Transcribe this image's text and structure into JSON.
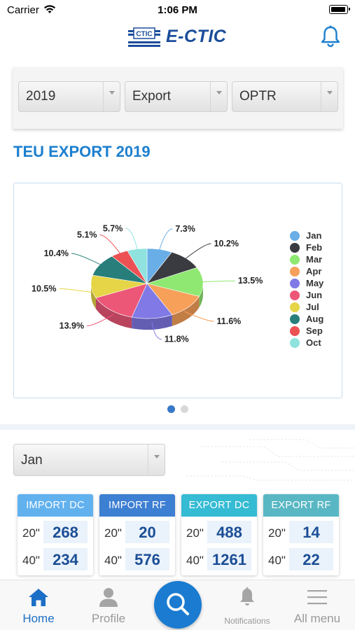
{
  "status_bar": {
    "carrier": "Carrier",
    "time": "1:06 PM"
  },
  "header": {
    "logo_mark_text": "CTIC",
    "logo_text": "E-CTIC"
  },
  "filters": {
    "year": "2019",
    "direction": "Export",
    "operator": "OPTR"
  },
  "section_title": "TEU EXPORT 2019",
  "chart_data": {
    "type": "pie",
    "style": "3d-pie",
    "categories": [
      "Jan",
      "Feb",
      "Mar",
      "Apr",
      "May",
      "Jun",
      "Jul",
      "Aug",
      "Sep",
      "Oct"
    ],
    "values": [
      7.3,
      10.2,
      13.5,
      11.6,
      11.8,
      13.9,
      10.5,
      10.4,
      5.1,
      5.7
    ],
    "labels": [
      "7.3%",
      "10.2%",
      "13.5%",
      "11.6%",
      "11.8%",
      "13.9%",
      "10.5%",
      "10.4%",
      "5.1%",
      "5.7%"
    ],
    "colors": [
      "#6aaee8",
      "#3a3b40",
      "#8fe872",
      "#f7a05a",
      "#8079e6",
      "#ec5778",
      "#e5d547",
      "#277e7a",
      "#ec5254",
      "#8fe2dd"
    ],
    "legend_position": "right"
  },
  "carousel": {
    "pages": 2,
    "active": 1
  },
  "month_select": {
    "value": "Jan"
  },
  "stats": [
    {
      "title": "IMPORT DC",
      "color": "#62b1ef",
      "rows": [
        {
          "size": "20\"",
          "value": "268"
        },
        {
          "size": "40\"",
          "value": "234"
        }
      ]
    },
    {
      "title": "IMPORT RF",
      "color": "#3d7fd2",
      "rows": [
        {
          "size": "20\"",
          "value": "20"
        },
        {
          "size": "40\"",
          "value": "576"
        }
      ]
    },
    {
      "title": "EXPORT DC",
      "color": "#35bbd3",
      "rows": [
        {
          "size": "20\"",
          "value": "488"
        },
        {
          "size": "40\"",
          "value": "1261"
        }
      ]
    },
    {
      "title": "EXPORT RF",
      "color": "#59b7c4",
      "rows": [
        {
          "size": "20\"",
          "value": "14"
        },
        {
          "size": "40\"",
          "value": "22"
        }
      ]
    }
  ],
  "tabs": [
    {
      "label": "Home",
      "icon": "home-icon",
      "active": true
    },
    {
      "label": "Profile",
      "icon": "user-icon",
      "active": false
    },
    {
      "label": "Search",
      "icon": "search-icon",
      "active": false
    },
    {
      "label": "Notifications",
      "icon": "bell-icon",
      "active": false
    },
    {
      "label": "All menu",
      "icon": "menu-icon",
      "active": false
    }
  ]
}
